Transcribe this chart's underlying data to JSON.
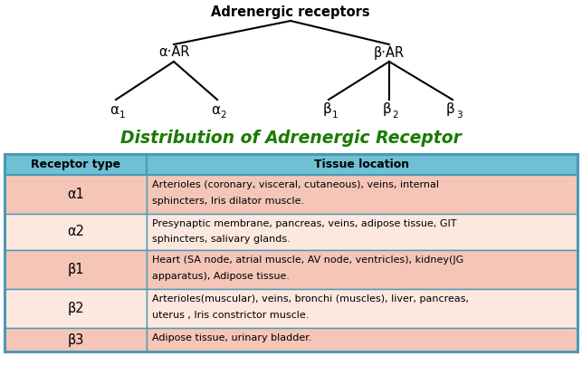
{
  "title_tree": "Adrenergic receptors",
  "table_title": "Distribution of Adrenergic Receptor",
  "table_title_color": "#1a7a00",
  "header_bg": "#6ec0d4",
  "header_text_color": "#000000",
  "col1_header": "Receptor type",
  "col2_header": "Tissue location",
  "rows": [
    {
      "receptor": "α1",
      "location": "Arterioles (coronary, visceral, cutaneous), veins, internal\nsphincters, Iris dilator muscle.",
      "bg": "#f5c6b8"
    },
    {
      "receptor": "α2",
      "location": "Presynaptic membrane, pancreas, veins, adipose tissue, GIT\nsphincters, salivary glands.",
      "bg": "#fde8e0"
    },
    {
      "receptor": "β1",
      "location": "Heart (SA node, atrial muscle, AV node, ventricles), kidney(JG\napparatus), Adipose tissue.",
      "bg": "#f5c6b8"
    },
    {
      "receptor": "β2",
      "location": "Arterioles(muscular), veins, bronchi (muscles), liver, pancreas,\nuterus , Iris constrictor muscle.",
      "bg": "#fde8e0"
    },
    {
      "receptor": "β3",
      "location": "Adipose tissue, urinary bladder.",
      "bg": "#f5c6b8"
    }
  ],
  "bg_color": "#ffffff",
  "border_color": "#4a9ab5",
  "tree_line_color": "#000000",
  "fig_width": 6.43,
  "fig_height": 4.15,
  "dpi": 100
}
